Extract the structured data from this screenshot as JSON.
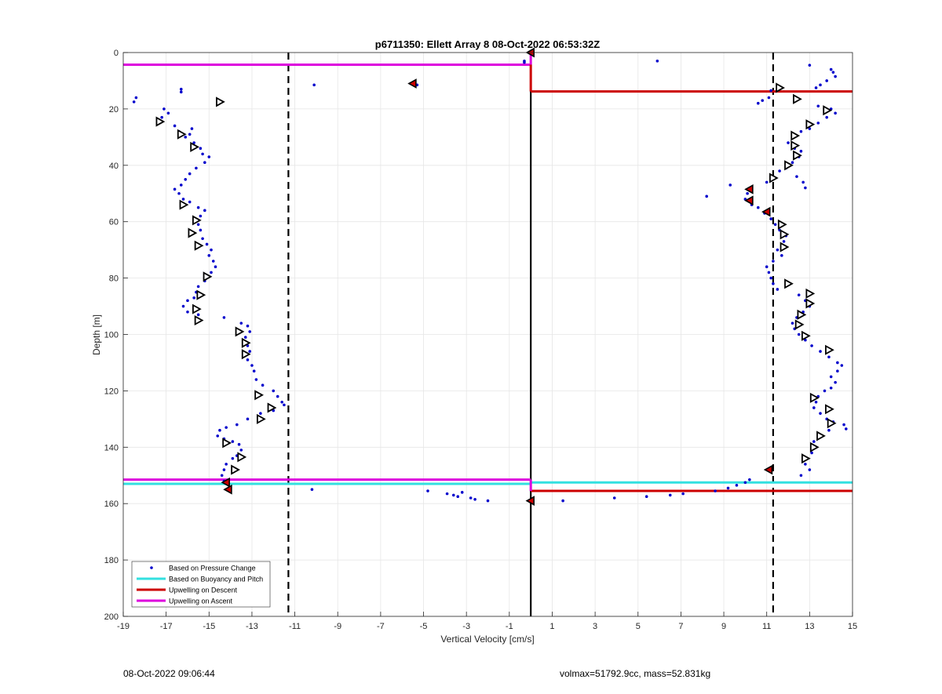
{
  "footer": {
    "timestamp": "08-Oct-2022 09:06:44",
    "info": "volmax=51792.9cc, mass=52.831kg"
  },
  "chart_data": {
    "type": "scatter",
    "title": "p6711350: Ellett Array 8 08-Oct-2022 06:53:32Z",
    "xlabel": "Vertical Velocity [cm/s]",
    "ylabel": "Depth [m]",
    "xlim": [
      -19,
      15
    ],
    "ylim": [
      0,
      200
    ],
    "y_reversed": true,
    "grid": true,
    "xticks": [
      -19,
      -17,
      -15,
      -13,
      -11,
      -9,
      -7,
      -5,
      -3,
      -1,
      1,
      3,
      5,
      7,
      9,
      11,
      13,
      15
    ],
    "yticks": [
      0,
      20,
      40,
      60,
      80,
      100,
      120,
      140,
      160,
      180,
      200
    ],
    "legend_position": "bottom-left",
    "colors": {
      "pressure": "#0000cc",
      "buoyancy": "#33e0e0",
      "descent": "#cc0000",
      "ascent": "#dd00dd",
      "axis_lines": "#000000"
    },
    "legend": [
      {
        "label": "Based on Pressure Change",
        "style": "dot",
        "color": "#0000cc"
      },
      {
        "label": "Based on Buoyancy and Pitch",
        "style": "line",
        "color": "#33e0e0"
      },
      {
        "label": "Upwelling on Descent",
        "style": "line",
        "color": "#cc0000"
      },
      {
        "label": "Upwelling on Ascent",
        "style": "line",
        "color": "#dd00dd"
      }
    ],
    "reference_lines": {
      "vertical_solid": 0,
      "vertical_dashed": [
        -11.3,
        11.3
      ]
    },
    "upwelling_ascent": [
      {
        "x": [
          -19,
          0
        ],
        "y": 4.3
      },
      {
        "x": [
          -19,
          0
        ],
        "y": 151.5
      }
    ],
    "upwelling_descent": [
      {
        "x": [
          0,
          15
        ],
        "y": 13.8
      },
      {
        "x": [
          0,
          15
        ],
        "y": 155.5
      }
    ],
    "buoyancy_pitch": [
      {
        "x": [
          -19,
          0
        ],
        "y": 153.0
      },
      {
        "x": [
          0,
          15
        ],
        "y": 152.5
      }
    ],
    "pressure_change_points": [
      [
        -18.4,
        16
      ],
      [
        -18.5,
        17.5
      ],
      [
        -16.3,
        13
      ],
      [
        -16.3,
        14
      ],
      [
        -17.1,
        20
      ],
      [
        -16.9,
        21.5
      ],
      [
        -17.2,
        23
      ],
      [
        -16.6,
        26
      ],
      [
        -16.4,
        28
      ],
      [
        -16.1,
        30
      ],
      [
        -15.8,
        27
      ],
      [
        -15.9,
        29
      ],
      [
        -15.7,
        32
      ],
      [
        -15.4,
        34
      ],
      [
        -15.3,
        36
      ],
      [
        -15.0,
        37
      ],
      [
        -15.2,
        39
      ],
      [
        -15.6,
        41
      ],
      [
        -15.9,
        43
      ],
      [
        -16.1,
        45
      ],
      [
        -16.3,
        47
      ],
      [
        -16.6,
        48.5
      ],
      [
        -16.4,
        50
      ],
      [
        -16.2,
        52
      ],
      [
        -15.9,
        53
      ],
      [
        -15.5,
        55
      ],
      [
        -15.2,
        56
      ],
      [
        -15.4,
        58
      ],
      [
        -15.5,
        61
      ],
      [
        -15.4,
        63
      ],
      [
        -15.3,
        66
      ],
      [
        -15.1,
        68
      ],
      [
        -14.9,
        70
      ],
      [
        -15.0,
        72
      ],
      [
        -14.8,
        74
      ],
      [
        -14.7,
        76
      ],
      [
        -14.9,
        78
      ],
      [
        -15.2,
        81
      ],
      [
        -15.5,
        83
      ],
      [
        -15.6,
        85
      ],
      [
        -15.7,
        87
      ],
      [
        -16.0,
        88
      ],
      [
        -16.2,
        90
      ],
      [
        -16.0,
        92
      ],
      [
        -15.5,
        93
      ],
      [
        -14.3,
        94
      ],
      [
        -13.5,
        96
      ],
      [
        -13.2,
        97
      ],
      [
        -13.1,
        99
      ],
      [
        -13.3,
        101
      ],
      [
        -13.2,
        104
      ],
      [
        -13.1,
        106
      ],
      [
        -13.2,
        109
      ],
      [
        -13.0,
        111
      ],
      [
        -12.9,
        113
      ],
      [
        -12.8,
        116
      ],
      [
        -12.5,
        118
      ],
      [
        -12.0,
        120
      ],
      [
        -11.8,
        122
      ],
      [
        -11.6,
        124
      ],
      [
        -11.5,
        125
      ],
      [
        -12.0,
        127
      ],
      [
        -12.6,
        128
      ],
      [
        -13.2,
        130
      ],
      [
        -13.7,
        132
      ],
      [
        -14.2,
        133
      ],
      [
        -14.5,
        134
      ],
      [
        -14.6,
        136
      ],
      [
        -14.3,
        137
      ],
      [
        -13.9,
        138
      ],
      [
        -13.6,
        139
      ],
      [
        -13.5,
        141
      ],
      [
        -13.7,
        143
      ],
      [
        -13.9,
        144
      ],
      [
        -14.2,
        146
      ],
      [
        -14.3,
        148
      ],
      [
        -14.4,
        150
      ],
      [
        -14.3,
        152
      ],
      [
        -10.2,
        155
      ],
      [
        -10.1,
        11.5
      ],
      [
        -5.6,
        11
      ],
      [
        -5.3,
        11.5
      ],
      [
        -4.8,
        155.5
      ],
      [
        -3.9,
        156.5
      ],
      [
        -3.6,
        157
      ],
      [
        -3.4,
        157.5
      ],
      [
        -3.2,
        156
      ],
      [
        -2.8,
        158
      ],
      [
        -2.6,
        158.5
      ],
      [
        -2.0,
        159
      ],
      [
        -0.3,
        3.5
      ],
      [
        1.5,
        159
      ],
      [
        3.9,
        158
      ],
      [
        5.4,
        157.5
      ],
      [
        6.5,
        157
      ],
      [
        7.1,
        156.5
      ],
      [
        8.6,
        155.5
      ],
      [
        9.2,
        154.5
      ],
      [
        9.6,
        153.5
      ],
      [
        10.2,
        151.5
      ],
      [
        10.0,
        152.5
      ],
      [
        5.9,
        3
      ],
      [
        13.0,
        4.5
      ],
      [
        14.0,
        6
      ],
      [
        14.1,
        7
      ],
      [
        14.2,
        8.5
      ],
      [
        13.8,
        10
      ],
      [
        13.5,
        11.5
      ],
      [
        13.3,
        12.5
      ],
      [
        11.2,
        13.5
      ],
      [
        11.1,
        16
      ],
      [
        10.8,
        17
      ],
      [
        10.6,
        18
      ],
      [
        13.4,
        19
      ],
      [
        14.0,
        20
      ],
      [
        14.2,
        21.5
      ],
      [
        13.8,
        23
      ],
      [
        13.4,
        25
      ],
      [
        13.0,
        27
      ],
      [
        12.6,
        28
      ],
      [
        12.2,
        30
      ],
      [
        12.0,
        32
      ],
      [
        12.3,
        34
      ],
      [
        12.6,
        35
      ],
      [
        12.5,
        37
      ],
      [
        12.2,
        39
      ],
      [
        11.9,
        41
      ],
      [
        11.6,
        42
      ],
      [
        11.3,
        44
      ],
      [
        11.0,
        46
      ],
      [
        12.4,
        44
      ],
      [
        12.7,
        46
      ],
      [
        12.8,
        48
      ],
      [
        9.3,
        47
      ],
      [
        8.2,
        51
      ],
      [
        10.1,
        50
      ],
      [
        10.0,
        52
      ],
      [
        10.3,
        54
      ],
      [
        10.6,
        55
      ],
      [
        10.9,
        57
      ],
      [
        11.2,
        59
      ],
      [
        11.4,
        61
      ],
      [
        11.6,
        63
      ],
      [
        11.9,
        65
      ],
      [
        11.8,
        67
      ],
      [
        11.5,
        70
      ],
      [
        11.7,
        72
      ],
      [
        11.3,
        74
      ],
      [
        11.0,
        76
      ],
      [
        11.1,
        78
      ],
      [
        11.2,
        80
      ],
      [
        11.3,
        82
      ],
      [
        11.5,
        84
      ],
      [
        12.5,
        86
      ],
      [
        12.8,
        88
      ],
      [
        13.0,
        90
      ],
      [
        12.7,
        92
      ],
      [
        12.4,
        94
      ],
      [
        12.2,
        96
      ],
      [
        12.3,
        98
      ],
      [
        12.5,
        100
      ],
      [
        12.8,
        102
      ],
      [
        13.1,
        104
      ],
      [
        13.5,
        106
      ],
      [
        13.9,
        108
      ],
      [
        14.3,
        110
      ],
      [
        14.5,
        111
      ],
      [
        14.3,
        113
      ],
      [
        14.0,
        115
      ],
      [
        14.2,
        117
      ],
      [
        14.0,
        119
      ],
      [
        13.7,
        120
      ],
      [
        13.4,
        122
      ],
      [
        13.3,
        124
      ],
      [
        13.2,
        126
      ],
      [
        13.5,
        128
      ],
      [
        13.8,
        130
      ],
      [
        14.1,
        131
      ],
      [
        14.6,
        132
      ],
      [
        14.7,
        133.5
      ],
      [
        13.9,
        134
      ],
      [
        13.5,
        136
      ],
      [
        13.2,
        138
      ],
      [
        13.3,
        140
      ],
      [
        13.1,
        142
      ],
      [
        12.9,
        144
      ],
      [
        12.8,
        146
      ],
      [
        13.0,
        148
      ],
      [
        12.6,
        150
      ],
      [
        -0.3,
        3
      ]
    ],
    "descent_markers": [
      [
        -14.5,
        17.5
      ],
      [
        -17.3,
        24.5
      ],
      [
        -16.3,
        29
      ],
      [
        -15.7,
        33.5
      ],
      [
        -16.2,
        54
      ],
      [
        -15.6,
        59.5
      ],
      [
        -15.8,
        64
      ],
      [
        -15.5,
        68.5
      ],
      [
        -15.1,
        79.5
      ],
      [
        -15.4,
        86
      ],
      [
        -15.6,
        91
      ],
      [
        -15.5,
        95
      ],
      [
        -13.6,
        99
      ],
      [
        -13.3,
        103
      ],
      [
        -13.3,
        107
      ],
      [
        -12.7,
        121.5
      ],
      [
        -12.1,
        126
      ],
      [
        -12.6,
        130
      ],
      [
        -14.2,
        138.5
      ],
      [
        -13.5,
        143.5
      ],
      [
        -13.8,
        148
      ],
      [
        11.6,
        12.5
      ],
      [
        12.4,
        16.5
      ],
      [
        13.8,
        20.5
      ],
      [
        13.0,
        25.5
      ],
      [
        12.3,
        29.5
      ],
      [
        12.3,
        33
      ],
      [
        12.4,
        36.5
      ],
      [
        12.0,
        40
      ],
      [
        11.3,
        44.5
      ],
      [
        11.7,
        61
      ],
      [
        11.8,
        64.5
      ],
      [
        11.8,
        69
      ],
      [
        12.0,
        82
      ],
      [
        13.0,
        85.5
      ],
      [
        13.0,
        89
      ],
      [
        12.6,
        93
      ],
      [
        12.5,
        96.5
      ],
      [
        12.8,
        100.5
      ],
      [
        13.9,
        105.5
      ],
      [
        13.2,
        122.5
      ],
      [
        13.9,
        126.5
      ],
      [
        14.0,
        131.5
      ],
      [
        13.5,
        136
      ],
      [
        13.2,
        140
      ],
      [
        12.8,
        144
      ]
    ],
    "upwelling_points": [
      [
        0.0,
        0
      ],
      [
        -5.5,
        11
      ],
      [
        10.2,
        48.5
      ],
      [
        10.2,
        52.5
      ],
      [
        11.0,
        56.5
      ],
      [
        -14.2,
        152.5
      ],
      [
        -14.1,
        155
      ],
      [
        11.1,
        148
      ],
      [
        0.0,
        159
      ]
    ]
  }
}
